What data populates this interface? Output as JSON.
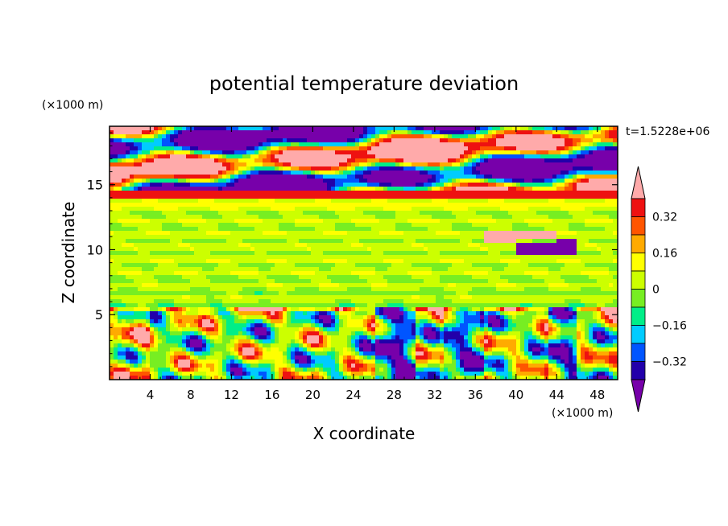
{
  "chart_data": {
    "type": "heatmap",
    "title": "potential temperature deviation",
    "xlabel": "X coordinate",
    "ylabel": "Z coordinate",
    "x_unit": "(×1000 m)",
    "y_unit": "(×1000 m)",
    "time_label": "t=1.5228e+06",
    "xlim": [
      0,
      50
    ],
    "ylim": [
      0,
      19.5
    ],
    "x_ticks": [
      4,
      8,
      12,
      16,
      20,
      24,
      28,
      32,
      36,
      40,
      44,
      48
    ],
    "y_ticks": [
      5,
      10,
      15
    ],
    "colorbar": {
      "levels": [
        -0.4,
        -0.32,
        -0.24,
        -0.16,
        -0.08,
        0,
        0.08,
        0.16,
        0.24,
        0.32,
        0.4
      ],
      "colors": [
        "#7700aa",
        "#2200aa",
        "#0055ff",
        "#00ccff",
        "#00ee88",
        "#77ee22",
        "#ccff00",
        "#ffff00",
        "#ffaa00",
        "#ff5500",
        "#ee1111",
        "#ffaaaa"
      ],
      "tick_labels": [
        "0.32",
        "0.16",
        "0",
        "-0.16",
        "-0.32"
      ]
    },
    "regions": [
      {
        "z": [
          0,
          5.5
        ],
        "pattern": "convective mixed layer, values -0.4 to 0.4"
      },
      {
        "z": [
          5.5,
          14.5
        ],
        "pattern": "stable layer, values near 0 (0 to 0.08)"
      },
      {
        "z": [
          14.5,
          19.5
        ],
        "pattern": "upper layer, alternating <-0.4 and >0.4 bands"
      }
    ]
  }
}
